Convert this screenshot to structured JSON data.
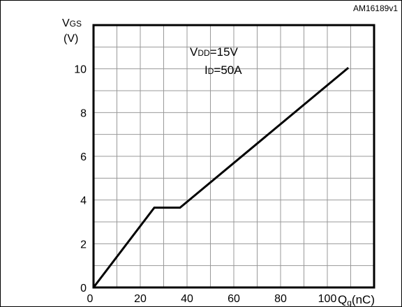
{
  "chart_data": {
    "type": "line",
    "figure_id": "AM16189v1",
    "ylabel_main": "V",
    "ylabel_sub": "GS",
    "ylabel_unit": "(V)",
    "xlabel_main": "Q",
    "xlabel_sub": "g",
    "xlabel_unit": "(nC)",
    "annotation_vdd_main": "V",
    "annotation_vdd_sub": "DD",
    "annotation_vdd_value": "=15V",
    "annotation_id_main": "I",
    "annotation_id_sub": "D",
    "annotation_id_value": "=50A",
    "xlim": [
      0,
      120
    ],
    "ylim": [
      0,
      12
    ],
    "x_ticks": [
      0,
      20,
      40,
      60,
      80,
      100
    ],
    "y_ticks": [
      0,
      2,
      4,
      6,
      8,
      10
    ],
    "grid": true,
    "series": [
      {
        "x": [
          0,
          26,
          37,
          109
        ],
        "y": [
          0,
          3.65,
          3.65,
          10.05
        ]
      }
    ],
    "colors": {
      "line": "#000000",
      "grid": "#999999",
      "axes": "#000000"
    }
  }
}
